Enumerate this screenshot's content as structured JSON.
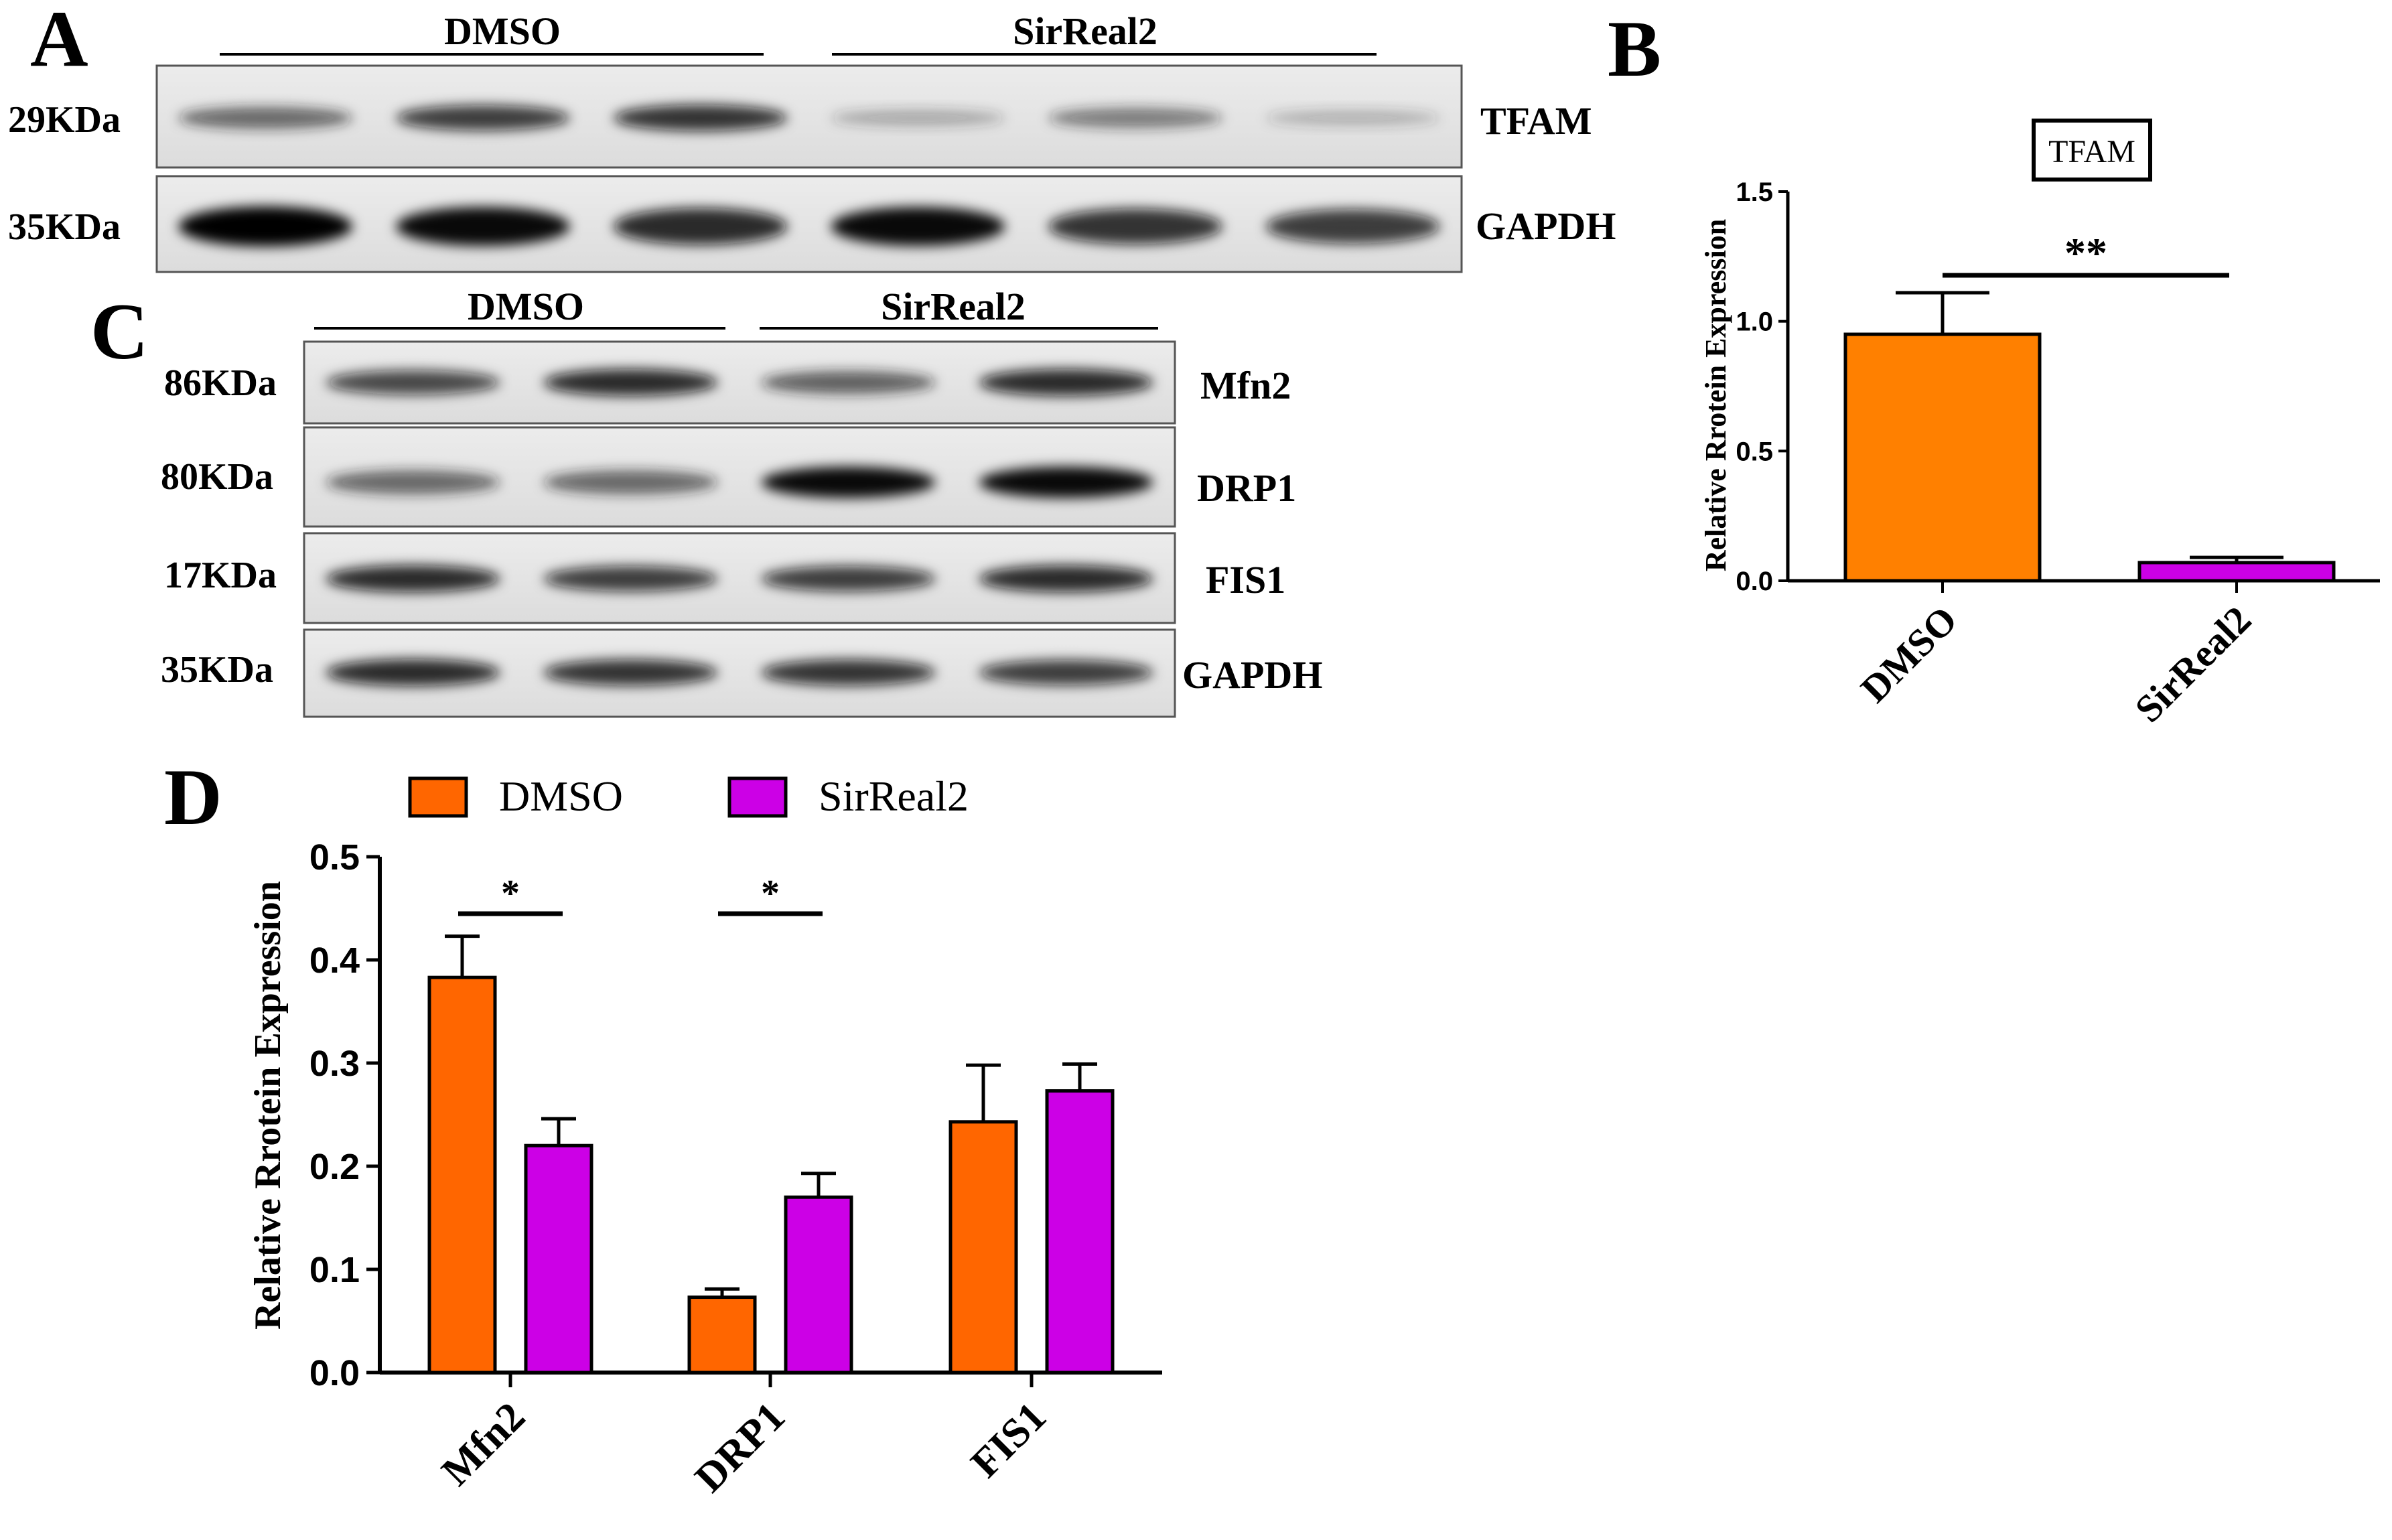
{
  "panels": {
    "a": {
      "letter": "A",
      "groups": [
        "DMSO",
        "SirReal2"
      ],
      "rows": [
        {
          "marker": "29KDa",
          "protein": "TFAM",
          "intensities": [
            0.55,
            0.75,
            0.8,
            0.2,
            0.45,
            0.15
          ]
        },
        {
          "marker": "35KDa",
          "protein": "GAPDH",
          "intensities": [
            1.0,
            0.95,
            0.85,
            0.95,
            0.8,
            0.75
          ]
        }
      ]
    },
    "b": {
      "letter": "B"
    },
    "c": {
      "letter": "C",
      "groups": [
        "DMSO",
        "SirReal2"
      ],
      "rows": [
        {
          "marker": "86KDa",
          "protein": "Mfn2",
          "intensities": [
            0.7,
            0.85,
            0.6,
            0.85
          ]
        },
        {
          "marker": "80KDa",
          "protein": "DRP1",
          "intensities": [
            0.55,
            0.55,
            0.95,
            0.95
          ]
        },
        {
          "marker": "17KDa",
          "protein": "FIS1",
          "intensities": [
            0.85,
            0.75,
            0.75,
            0.85
          ]
        },
        {
          "marker": "35KDa",
          "protein": "GAPDH",
          "intensities": [
            0.85,
            0.8,
            0.8,
            0.75
          ]
        }
      ]
    },
    "d": {
      "letter": "D"
    }
  },
  "chart_data": [
    {
      "panel": "B",
      "type": "bar",
      "title": "TFAM",
      "xlabel": "",
      "ylabel": "Relative Rrotein Expression",
      "categories": [
        "DMSO",
        "SirReal2"
      ],
      "values": [
        0.95,
        0.07
      ],
      "errors": [
        0.16,
        0.02
      ],
      "ylim": [
        0,
        1.5
      ],
      "yticks": [
        "0.0",
        "0.5",
        "1.0",
        "1.5"
      ],
      "colors": [
        "#ff8000",
        "#cc00e6"
      ],
      "significance": [
        {
          "between": [
            "DMSO",
            "SirReal2"
          ],
          "label": "**"
        }
      ]
    },
    {
      "panel": "D",
      "type": "bar",
      "xlabel": "",
      "ylabel": "Relative Rrotein Expression",
      "categories": [
        "Mfn2",
        "DRP1",
        "FIS1"
      ],
      "series": [
        {
          "name": "DMSO",
          "values": [
            0.383,
            0.073,
            0.243
          ],
          "errors": [
            0.04,
            0.008,
            0.055
          ],
          "color": "#ff6600"
        },
        {
          "name": "SirReal2",
          "values": [
            0.22,
            0.17,
            0.273
          ],
          "errors": [
            0.026,
            0.023,
            0.026
          ],
          "color": "#cc00e6"
        }
      ],
      "ylim": [
        0,
        0.5
      ],
      "yticks": [
        "0.0",
        "0.1",
        "0.2",
        "0.3",
        "0.4",
        "0.5"
      ],
      "significance": [
        {
          "category": "Mfn2",
          "label": "*"
        },
        {
          "category": "DRP1",
          "label": "*"
        }
      ],
      "legend": "top"
    }
  ]
}
